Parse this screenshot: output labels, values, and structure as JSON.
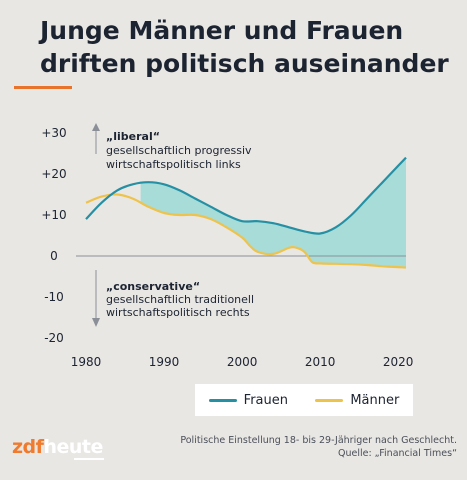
{
  "title": "Junge Männer und Frauen driften politisch auseinander",
  "annotations": {
    "liberal_title": "„liberal“",
    "liberal_line1": "gesellschaftlich progressiv",
    "liberal_line2": "wirtschaftspolitisch links",
    "conservative_title": "„conservative“",
    "conservative_line1": "gesellschaftlich traditionell",
    "conservative_line2": "wirtschaftspolitisch rechts"
  },
  "legend": {
    "women": "Frauen",
    "men": "Männer"
  },
  "logo": {
    "part1": "zdf",
    "part2": "heute"
  },
  "footer": {
    "caption": "Politische Einstellung 18- bis 29-Jähriger nach Geschlecht.",
    "source": "Quelle: „Financial Times“"
  },
  "colors": {
    "women": "#2590a3",
    "men": "#eec34c",
    "fill": "#a7dcd8",
    "accent": "#e8742c",
    "background": "#e9e7e4"
  },
  "chart_data": {
    "type": "line",
    "xlim": [
      1980,
      2021
    ],
    "ylim": [
      -20,
      30
    ],
    "x_ticks": [
      1980,
      1990,
      2000,
      2010,
      2020
    ],
    "y_ticks": [
      30,
      20,
      10,
      0,
      -10,
      -20
    ],
    "y_tick_labels": [
      "+30",
      "+20",
      "+10",
      "0",
      "-10",
      "-20"
    ],
    "series": [
      {
        "name": "Frauen",
        "x": [
          1980,
          1982,
          1984,
          1986,
          1988,
          1990,
          1992,
          1994,
          1996,
          1998,
          2000,
          2002,
          2004,
          2006,
          2008,
          2010,
          2012,
          2014,
          2016,
          2018,
          2020,
          2021
        ],
        "y": [
          9,
          13,
          16,
          17.5,
          18,
          17.5,
          16,
          14,
          12,
          10,
          8.5,
          8.5,
          8,
          7,
          6,
          5.5,
          7,
          10,
          14,
          18,
          22,
          24
        ]
      },
      {
        "name": "Männer",
        "x": [
          1980,
          1982,
          1984,
          1986,
          1988,
          1990,
          1992,
          1994,
          1996,
          1998,
          2000,
          2001,
          2002,
          2004,
          2006,
          2007,
          2008,
          2009,
          2010,
          2012,
          2014,
          2016,
          2018,
          2020,
          2021
        ],
        "y": [
          13,
          14.5,
          15,
          14,
          12,
          10.5,
          10,
          10,
          9,
          7,
          4.5,
          2.5,
          1,
          0.5,
          2,
          2,
          1,
          -1.5,
          -1.8,
          -1.9,
          -2,
          -2.2,
          -2.5,
          -2.7,
          -2.8
        ]
      }
    ]
  }
}
